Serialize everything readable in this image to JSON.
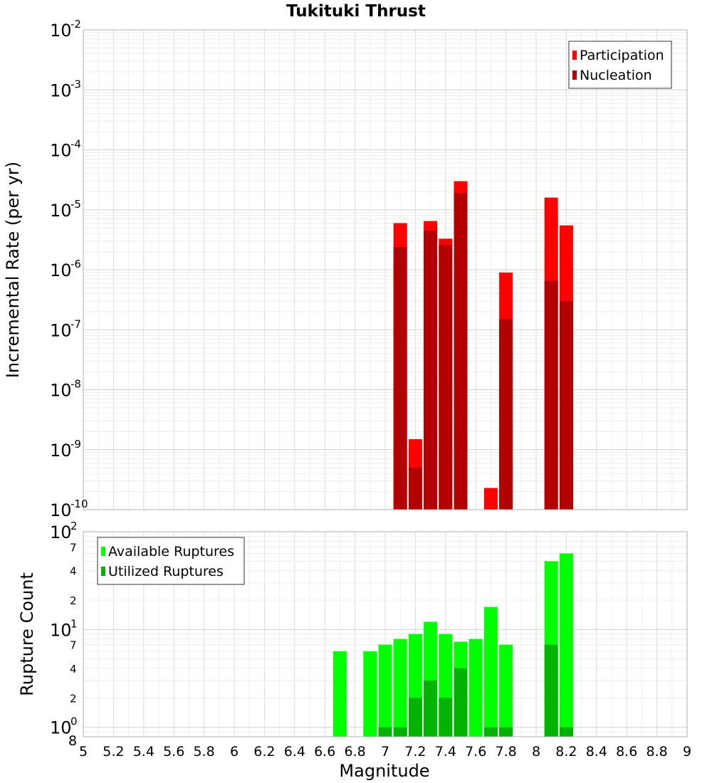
{
  "chart_data": [
    {
      "type": "bar",
      "title": "Tukituki Thrust",
      "ylabel": "Incremental Rate (per yr)",
      "yscale": "log",
      "ylim": [
        1e-10,
        0.01
      ],
      "xlim": [
        5,
        9
      ],
      "grid": true,
      "legend_position": "top-right",
      "y_ticks": [
        {
          "base": "10",
          "exp": "-2",
          "value": 0.01
        },
        {
          "base": "10",
          "exp": "-3",
          "value": 0.001
        },
        {
          "base": "10",
          "exp": "-4",
          "value": 0.0001
        },
        {
          "base": "10",
          "exp": "-5",
          "value": 1e-05
        },
        {
          "base": "10",
          "exp": "-6",
          "value": 1e-06
        },
        {
          "base": "10",
          "exp": "-7",
          "value": 1e-07
        },
        {
          "base": "10",
          "exp": "-8",
          "value": 1e-08
        },
        {
          "base": "10",
          "exp": "-9",
          "value": 1e-09
        },
        {
          "base": "10",
          "exp": "-10",
          "value": 1e-10
        }
      ],
      "x": [
        7.1,
        7.2,
        7.3,
        7.4,
        7.5,
        7.7,
        7.8,
        8.1,
        8.2
      ],
      "series": [
        {
          "name": "Participation",
          "color": "#ff0000",
          "values": [
            6e-06,
            1.5e-09,
            6.5e-06,
            3.3e-06,
            3e-05,
            2.3e-10,
            9e-07,
            1.6e-05,
            5.5e-06
          ]
        },
        {
          "name": "Nucleation",
          "color": "#b30000",
          "values": [
            2.4e-06,
            5e-10,
            4.5e-06,
            2.6e-06,
            1.9e-05,
            null,
            1.5e-07,
            6.5e-07,
            3e-07
          ]
        }
      ]
    },
    {
      "type": "bar",
      "xlabel": "Magnitude",
      "ylabel": "Rupture Count",
      "yscale": "log",
      "ylim": [
        0.8,
        100
      ],
      "xlim": [
        5,
        9
      ],
      "grid": true,
      "legend_position": "top-left",
      "x_ticks": [
        "5",
        "5.2",
        "5.4",
        "5.6",
        "5.8",
        "6",
        "6.2",
        "6.4",
        "6.6",
        "6.8",
        "7",
        "7.2",
        "7.4",
        "7.6",
        "7.8",
        "8",
        "8.2",
        "8.4",
        "8.6",
        "8.8",
        "9"
      ],
      "y_ticks": [
        {
          "base": "10",
          "exp": "2",
          "value": 100
        },
        {
          "base": "10",
          "exp": "1",
          "value": 10
        },
        {
          "base": "10",
          "exp": "0",
          "value": 1
        }
      ],
      "y_minor_labels": [
        {
          "label": "7",
          "value": 70
        },
        {
          "label": "4",
          "value": 40
        },
        {
          "label": "2",
          "value": 20
        },
        {
          "label": "7",
          "value": 7
        },
        {
          "label": "4",
          "value": 4
        },
        {
          "label": "2",
          "value": 2
        },
        {
          "label": "8",
          "value": 0.8
        }
      ],
      "x": [
        6.7,
        6.9,
        7.0,
        7.1,
        7.2,
        7.3,
        7.4,
        7.5,
        7.6,
        7.7,
        7.8,
        8.1,
        8.2
      ],
      "series": [
        {
          "name": "Available Ruptures",
          "color": "#00ff00",
          "values": [
            6,
            6,
            7,
            8,
            9,
            12,
            9,
            7.5,
            8,
            17,
            7,
            50,
            60
          ]
        },
        {
          "name": "Utilized Ruptures",
          "color": "#00b300",
          "values": [
            null,
            null,
            1,
            1,
            2,
            3,
            2,
            4,
            null,
            1,
            1,
            7,
            1
          ]
        }
      ]
    }
  ]
}
